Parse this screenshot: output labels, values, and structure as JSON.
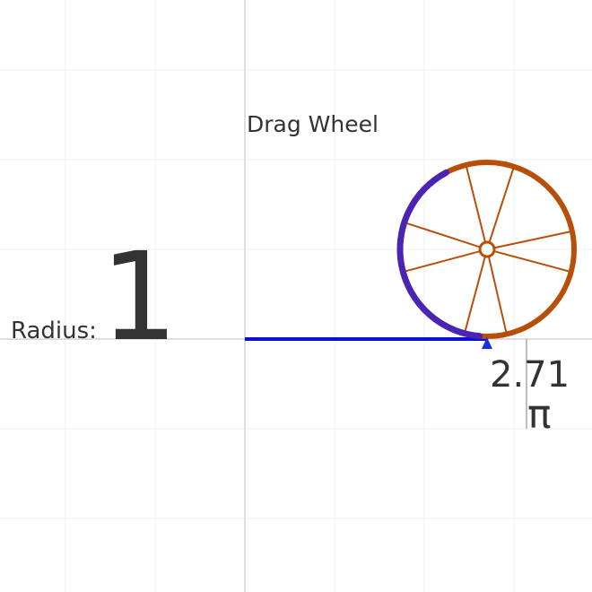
{
  "drag_label": "Drag Wheel",
  "radius_label": "Radius:",
  "radius_value": "1",
  "distance_value": "2.71",
  "distance_unit": "π",
  "colors": {
    "background": "#ffffff",
    "grid": "#f2f2f2",
    "axis": "#d4d4d4",
    "rolled_arc": "#4b23b5",
    "wheel": "#b84e08",
    "track": "#0a10d6",
    "marker": "#1a2fe6",
    "text": "#333333",
    "tick": "#aaaaaa"
  }
}
